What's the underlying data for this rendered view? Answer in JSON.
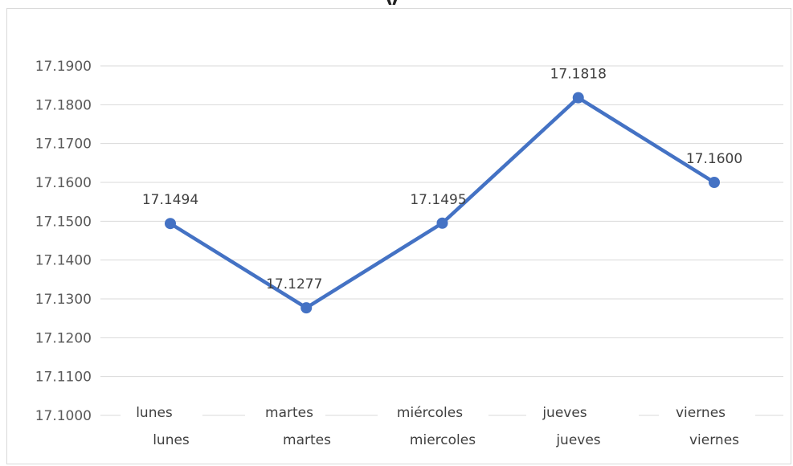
{
  "chart_data": {
    "type": "line",
    "title": "",
    "xlabel": "",
    "ylabel": "",
    "ylim": [
      17.1,
      17.19
    ],
    "yticks": [
      "17.1000",
      "17.1100",
      "17.1200",
      "17.1300",
      "17.1400",
      "17.1500",
      "17.1600",
      "17.1700",
      "17.1800",
      "17.1900"
    ],
    "grid": true,
    "legend": "none",
    "color": "#4472C4",
    "categories": [
      "lunes",
      "martes",
      "miércoles",
      "jueves",
      "viernes"
    ],
    "categories_secondary": [
      "lunes",
      "martes",
      "miercoles",
      "jueves",
      "viernes"
    ],
    "series": [
      {
        "values": [
          17.1494,
          17.1277,
          17.1495,
          17.1818,
          17.16
        ],
        "labels": [
          "17.1494",
          "17.1277",
          "17.1495",
          "17.1818",
          "17.1600"
        ]
      }
    ]
  }
}
